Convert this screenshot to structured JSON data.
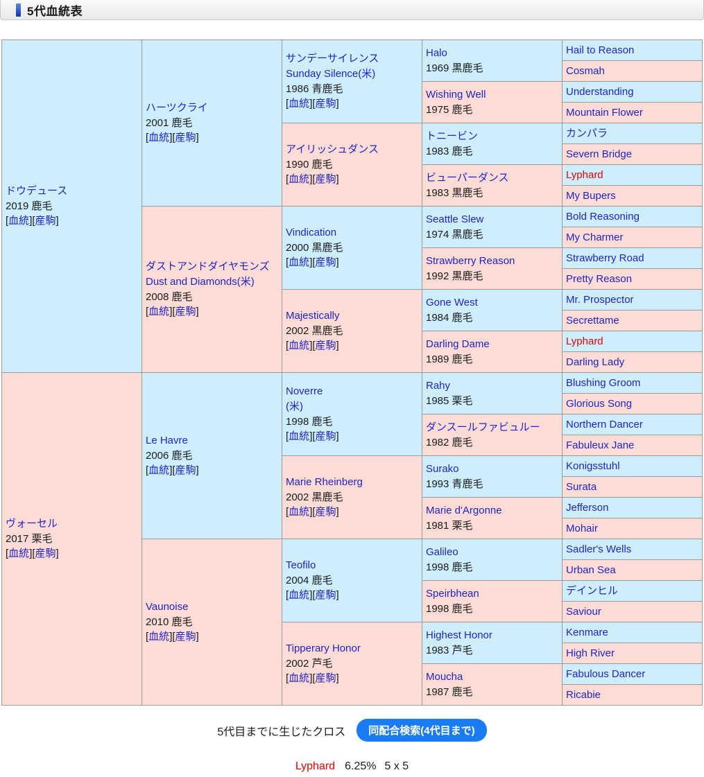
{
  "header": {
    "title": "5代血統表"
  },
  "link_labels": {
    "blood": "血統",
    "offspring": "産駒"
  },
  "colors": {
    "male_bg": "#cceeff",
    "female_bg": "#fcdcd5",
    "link_blue": "#2222cc",
    "cross_red": "#e60000",
    "button_blue": "#1a7cf2"
  },
  "horses": {
    "gen1": [
      {
        "name": "ドウデュース",
        "detail": "2019 鹿毛",
        "sex": "m"
      },
      {
        "name": "ヴォーセル",
        "detail": "2017 栗毛",
        "sex": "f"
      }
    ],
    "gen2": [
      {
        "name": "ハーツクライ",
        "detail": "2001 鹿毛",
        "sex": "m"
      },
      {
        "name": "ダストアンドダイヤモンズ",
        "name2": "Dust and Diamonds(米)",
        "detail": "2008 鹿毛",
        "sex": "f"
      },
      {
        "name": "Le Havre",
        "detail": "2006 鹿毛",
        "sex": "m"
      },
      {
        "name": "Vaunoise",
        "detail": "2010 鹿毛",
        "sex": "f"
      }
    ],
    "gen3": [
      {
        "name": "サンデーサイレンス",
        "name2": "Sunday Silence(米)",
        "detail": "1986 青鹿毛",
        "sex": "m"
      },
      {
        "name": "アイリッシュダンス",
        "detail": "1990 鹿毛",
        "sex": "f"
      },
      {
        "name": "Vindication",
        "detail": "2000 黒鹿毛",
        "sex": "m"
      },
      {
        "name": "Majestically",
        "detail": "2002 黒鹿毛",
        "sex": "f"
      },
      {
        "name": "Noverre",
        "name2": "(米)",
        "detail": "1998 鹿毛",
        "sex": "m"
      },
      {
        "name": "Marie Rheinberg",
        "detail": "2002 黒鹿毛",
        "sex": "f"
      },
      {
        "name": "Teofilo",
        "detail": "2004 鹿毛",
        "sex": "m"
      },
      {
        "name": "Tipperary Honor",
        "detail": "2002 芦毛",
        "sex": "f"
      }
    ],
    "gen4": [
      {
        "name": "Halo",
        "detail": "1969 黒鹿毛",
        "sex": "m"
      },
      {
        "name": "Wishing Well",
        "detail": "1975 鹿毛",
        "sex": "f"
      },
      {
        "name": "トニービン",
        "detail": "1983 鹿毛",
        "sex": "m"
      },
      {
        "name": "ビューパーダンス",
        "detail": "1983 黒鹿毛",
        "sex": "f"
      },
      {
        "name": "Seattle Slew",
        "detail": "1974 黒鹿毛",
        "sex": "m"
      },
      {
        "name": "Strawberry Reason",
        "detail": "1992 黒鹿毛",
        "sex": "f"
      },
      {
        "name": "Gone West",
        "detail": "1984 鹿毛",
        "sex": "m"
      },
      {
        "name": "Darling Dame",
        "detail": "1989 鹿毛",
        "sex": "f"
      },
      {
        "name": "Rahy",
        "detail": "1985 栗毛",
        "sex": "m"
      },
      {
        "name": "ダンスールファビュルー",
        "detail": "1982 鹿毛",
        "sex": "f"
      },
      {
        "name": "Surako",
        "detail": "1993 青鹿毛",
        "sex": "m"
      },
      {
        "name": "Marie d'Argonne",
        "detail": "1981 栗毛",
        "sex": "f"
      },
      {
        "name": "Galileo",
        "detail": "1998 鹿毛",
        "sex": "m"
      },
      {
        "name": "Speirbhean",
        "detail": "1998 鹿毛",
        "sex": "f"
      },
      {
        "name": "Highest Honor",
        "detail": "1983 芦毛",
        "sex": "m"
      },
      {
        "name": "Moucha",
        "detail": "1987 鹿毛",
        "sex": "f"
      }
    ],
    "gen5": [
      {
        "name": "Hail to Reason",
        "sex": "m"
      },
      {
        "name": "Cosmah",
        "sex": "f"
      },
      {
        "name": "Understanding",
        "sex": "m"
      },
      {
        "name": "Mountain Flower",
        "sex": "f"
      },
      {
        "name": "カンパラ",
        "sex": "m"
      },
      {
        "name": "Severn Bridge",
        "sex": "f"
      },
      {
        "name": "Lyphard",
        "sex": "m",
        "highlight": true
      },
      {
        "name": "My Bupers",
        "sex": "f"
      },
      {
        "name": "Bold Reasoning",
        "sex": "m"
      },
      {
        "name": "My Charmer",
        "sex": "f"
      },
      {
        "name": "Strawberry Road",
        "sex": "m"
      },
      {
        "name": "Pretty Reason",
        "sex": "f"
      },
      {
        "name": "Mr. Prospector",
        "sex": "m"
      },
      {
        "name": "Secrettame",
        "sex": "f"
      },
      {
        "name": "Lyphard",
        "sex": "m",
        "highlight": true
      },
      {
        "name": "Darling Lady",
        "sex": "f"
      },
      {
        "name": "Blushing Groom",
        "sex": "m"
      },
      {
        "name": "Glorious Song",
        "sex": "f"
      },
      {
        "name": "Northern Dancer",
        "sex": "m"
      },
      {
        "name": "Fabuleux Jane",
        "sex": "f"
      },
      {
        "name": "Konigsstuhl",
        "sex": "m"
      },
      {
        "name": "Surata",
        "sex": "f"
      },
      {
        "name": "Jefferson",
        "sex": "m"
      },
      {
        "name": "Mohair",
        "sex": "f"
      },
      {
        "name": "Sadler's Wells",
        "sex": "m"
      },
      {
        "name": "Urban Sea",
        "sex": "f"
      },
      {
        "name": "デインヒル",
        "sex": "m"
      },
      {
        "name": "Saviour",
        "sex": "f"
      },
      {
        "name": "Kenmare",
        "sex": "m"
      },
      {
        "name": "High River",
        "sex": "f"
      },
      {
        "name": "Fabulous Dancer",
        "sex": "m"
      },
      {
        "name": "Ricabie",
        "sex": "f"
      }
    ]
  },
  "footer": {
    "cross_label": "5代目までに生じたクロス",
    "search_button": "同配合検索(4代目まで)",
    "cross_result": {
      "name": "Lyphard",
      "percent": "6.25%",
      "pattern": "5 x 5"
    }
  }
}
